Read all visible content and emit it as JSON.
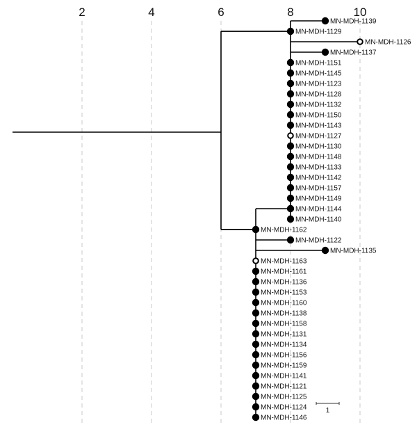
{
  "chart_data": {
    "type": "phylogenetic-tree",
    "axis_ticks": [
      "2",
      "4",
      "6",
      "8",
      "10"
    ],
    "xlim": [
      0,
      10
    ],
    "scale_bar": {
      "length": 1,
      "label": "1"
    },
    "tips": [
      {
        "label": "MN-MDH-1139",
        "x": 9,
        "attach": 8,
        "open": false
      },
      {
        "label": "MN-MDH-1129",
        "x": 8,
        "attach": 6,
        "open": false
      },
      {
        "label": "MN-MDH-1126",
        "x": 10,
        "attach": 8,
        "open": true
      },
      {
        "label": "MN-MDH-1137",
        "x": 9,
        "attach": 8,
        "open": false
      },
      {
        "label": "MN-MDH-1151",
        "x": 8,
        "attach": 8,
        "open": false
      },
      {
        "label": "MN-MDH-1145",
        "x": 8,
        "attach": 8,
        "open": false
      },
      {
        "label": "MN-MDH-1123",
        "x": 8,
        "attach": 8,
        "open": false
      },
      {
        "label": "MN-MDH-1128",
        "x": 8,
        "attach": 8,
        "open": false
      },
      {
        "label": "MN-MDH-1132",
        "x": 8,
        "attach": 8,
        "open": false
      },
      {
        "label": "MN-MDH-1150",
        "x": 8,
        "attach": 8,
        "open": false
      },
      {
        "label": "MN-MDH-1143",
        "x": 8,
        "attach": 8,
        "open": false
      },
      {
        "label": "MN-MDH-1127",
        "x": 8,
        "attach": 8,
        "open": true
      },
      {
        "label": "MN-MDH-1130",
        "x": 8,
        "attach": 8,
        "open": false
      },
      {
        "label": "MN-MDH-1148",
        "x": 8,
        "attach": 8,
        "open": false
      },
      {
        "label": "MN-MDH-1133",
        "x": 8,
        "attach": 8,
        "open": false
      },
      {
        "label": "MN-MDH-1142",
        "x": 8,
        "attach": 8,
        "open": false
      },
      {
        "label": "MN-MDH-1157",
        "x": 8,
        "attach": 8,
        "open": false
      },
      {
        "label": "MN-MDH-1149",
        "x": 8,
        "attach": 8,
        "open": false
      },
      {
        "label": "MN-MDH-1144",
        "x": 8,
        "attach": 7,
        "open": false
      },
      {
        "label": "MN-MDH-1140",
        "x": 8,
        "attach": 8,
        "open": false
      },
      {
        "label": "MN-MDH-1162",
        "x": 7,
        "attach": 6,
        "open": false
      },
      {
        "label": "MN-MDH-1122",
        "x": 8,
        "attach": 7,
        "open": false
      },
      {
        "label": "MN-MDH-1135",
        "x": 9,
        "attach": 7,
        "open": false
      },
      {
        "label": "MN-MDH-1163",
        "x": 7,
        "attach": 7,
        "open": true
      },
      {
        "label": "MN-MDH-1161",
        "x": 7,
        "attach": 7,
        "open": false
      },
      {
        "label": "MN-MDH-1136",
        "x": 7,
        "attach": 7,
        "open": false
      },
      {
        "label": "MN-MDH-1153",
        "x": 7,
        "attach": 7,
        "open": false
      },
      {
        "label": "MN-MDH-1160",
        "x": 7,
        "attach": 7,
        "open": false
      },
      {
        "label": "MN-MDH-1138",
        "x": 7,
        "attach": 7,
        "open": false
      },
      {
        "label": "MN-MDH-1158",
        "x": 7,
        "attach": 7,
        "open": false
      },
      {
        "label": "MN-MDH-1131",
        "x": 7,
        "attach": 7,
        "open": false
      },
      {
        "label": "MN-MDH-1134",
        "x": 7,
        "attach": 7,
        "open": false
      },
      {
        "label": "MN-MDH-1156",
        "x": 7,
        "attach": 7,
        "open": false
      },
      {
        "label": "MN-MDH-1159",
        "x": 7,
        "attach": 7,
        "open": false
      },
      {
        "label": "MN-MDH-1141",
        "x": 7,
        "attach": 7,
        "open": false
      },
      {
        "label": "MN-MDH-1121",
        "x": 7,
        "attach": 7,
        "open": false
      },
      {
        "label": "MN-MDH-1125",
        "x": 7,
        "attach": 7,
        "open": false
      },
      {
        "label": "MN-MDH-1124",
        "x": 7,
        "attach": 7,
        "open": false
      },
      {
        "label": "MN-MDH-1146",
        "x": 7,
        "attach": 7,
        "open": false
      }
    ]
  }
}
